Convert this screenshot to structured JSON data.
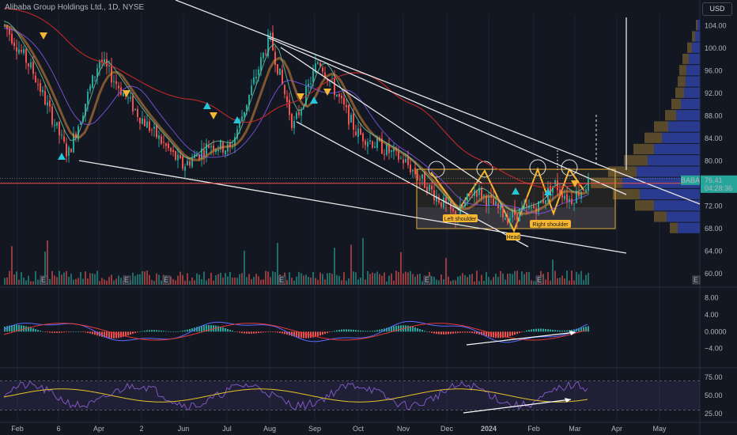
{
  "header": {
    "title": "Alibaba Group Holdings Ltd., 1D, NYSE"
  },
  "currency": "USD",
  "colors": {
    "background": "#131722",
    "up": "#26a69a",
    "down": "#ef5350",
    "box": "#f5b731",
    "trend": "#e8e8e8",
    "macd": "#5b6cff",
    "signal": "#e53935",
    "rsi": "#7e57c2",
    "rsi_ma": "#e6c229",
    "profile_up": "#2a3a8f",
    "profile_down": "#594a2c"
  },
  "chart_data": [
    {
      "type": "candlestick",
      "title": "Alibaba Group Holdings Ltd., 1D, NYSE",
      "x_ticks": [
        "Feb",
        "6",
        "Apr",
        "2",
        "Jun",
        "Jul",
        "Aug",
        "Sep",
        "Oct",
        "Nov",
        "Dec",
        "2024",
        "Feb",
        "Mar",
        "Apr",
        "May"
      ],
      "y_ticks": [
        "104.00",
        "100.00",
        "96.00",
        "92.00",
        "88.00",
        "84.00",
        "80.00",
        "76.00",
        "72.00",
        "68.00",
        "64.00",
        "60.00"
      ],
      "ylim": [
        58,
        106
      ],
      "price_path": [
        [
          "Feb",
          104
        ],
        [
          "6",
          96
        ],
        [
          "Mar",
          81
        ],
        [
          "Apr",
          98
        ],
        [
          "May",
          88
        ],
        [
          "May",
          79
        ],
        [
          "Jun",
          83
        ],
        [
          "Jul",
          82
        ],
        [
          "Aug",
          102
        ],
        [
          "Aug",
          86
        ],
        [
          "Sep",
          98
        ],
        [
          "Oct",
          85
        ],
        [
          "Nov",
          80
        ],
        [
          "Dec",
          70
        ],
        [
          "Jan",
          75
        ],
        [
          "2024",
          70
        ],
        [
          "Feb",
          72
        ],
        [
          "Feb",
          76
        ],
        [
          "Mar",
          73
        ],
        [
          "Mar",
          76.41
        ]
      ],
      "last_price": {
        "symbol": "BABA",
        "value": "76.41",
        "countdown": "04:28:36"
      },
      "horizontal_line": 76,
      "annotations": {
        "left_shoulder": "Left shoulder",
        "head": "Head",
        "right_shoulder": "Right shoulder"
      },
      "events": [
        "E",
        "E",
        "E",
        "E",
        "E",
        "E",
        "E"
      ],
      "volume_profile": {
        "levels": [
          104,
          102,
          100,
          98,
          96,
          94,
          92,
          90,
          88,
          86,
          84,
          82,
          80,
          78,
          76,
          74,
          72,
          70,
          68
        ],
        "up": [
          3,
          6,
          10,
          14,
          17,
          18,
          20,
          24,
          30,
          40,
          48,
          58,
          66,
          80,
          98,
          76,
          58,
          42,
          28
        ],
        "down": [
          2,
          4,
          6,
          8,
          9,
          10,
          11,
          12,
          14,
          18,
          22,
          26,
          30,
          36,
          40,
          34,
          24,
          16,
          10
        ]
      }
    },
    {
      "type": "line",
      "name": "MACD",
      "y_ticks": [
        "8.00",
        "4.00",
        "0.0000",
        "−4.00"
      ],
      "ylim": [
        -8,
        10
      ]
    },
    {
      "type": "line",
      "name": "RSI",
      "y_ticks": [
        "75.00",
        "50.00",
        "25.00"
      ],
      "ylim": [
        15,
        85
      ]
    }
  ]
}
